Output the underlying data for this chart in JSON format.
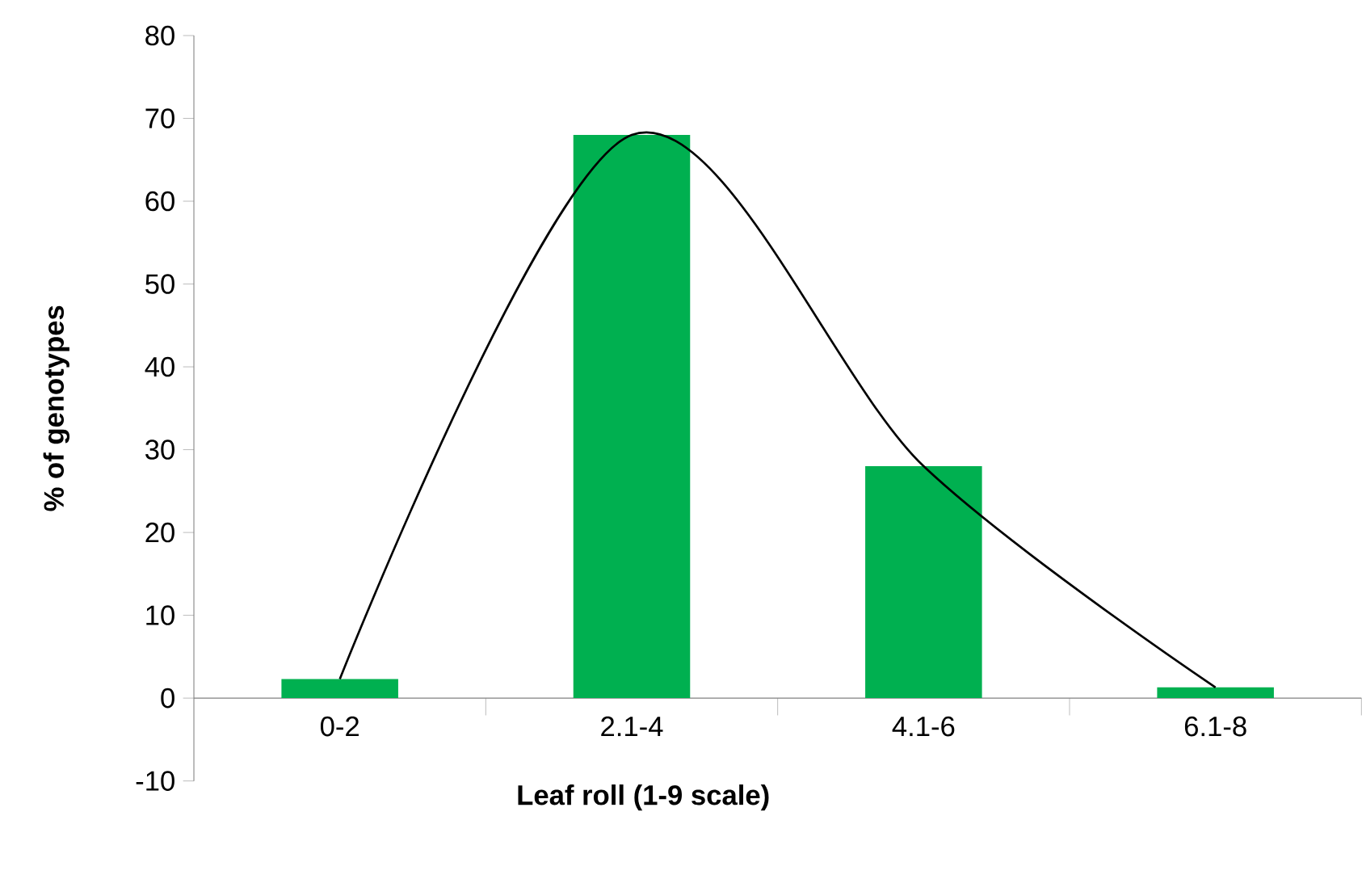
{
  "chart_data": {
    "type": "bar",
    "xlabel": "Leaf roll (1-9 scale)",
    "ylabel": "% of genotypes",
    "categories": [
      "0-2",
      "2.1-4",
      "4.1-6",
      "6.1-8"
    ],
    "ylim": [
      -10,
      80
    ],
    "yticks": [
      -10,
      0,
      10,
      20,
      30,
      40,
      50,
      60,
      70,
      80
    ],
    "grid": false,
    "series": [
      {
        "color": "#00b050",
        "values": [
          2.3,
          68,
          28,
          1.3
        ]
      },
      {
        "type": "line",
        "color": "#000000",
        "values": [
          2.3,
          68,
          28,
          1.3
        ]
      }
    ]
  }
}
